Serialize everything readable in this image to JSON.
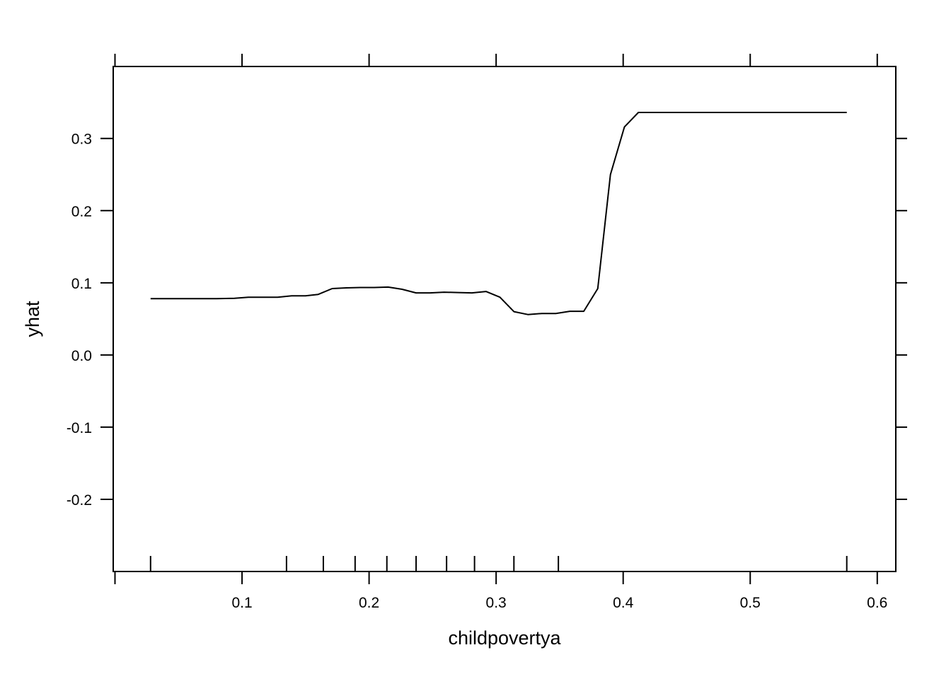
{
  "chart_data": {
    "type": "line",
    "xlabel": "childpovertya",
    "ylabel": "yhat",
    "xlim": [
      -0.0014,
      0.6146
    ],
    "ylim": [
      -0.3,
      0.3997
    ],
    "x_ticks": [
      0.1,
      0.2,
      0.3,
      0.4,
      0.5,
      0.6
    ],
    "x_tick_labels": [
      "0.1",
      "0.2",
      "0.3",
      "0.4",
      "0.5",
      "0.6"
    ],
    "y_ticks": [
      -0.2,
      -0.1,
      0.0,
      0.1,
      0.2,
      0.3
    ],
    "y_tick_labels": [
      "-0.2",
      "-0.1",
      "0.0",
      "0.1",
      "0.2",
      "0.3"
    ],
    "grid": false,
    "rug_x": [
      0.028,
      0.135,
      0.164,
      0.189,
      0.214,
      0.237,
      0.261,
      0.283,
      0.314,
      0.349,
      0.576
    ],
    "series": [
      {
        "x": [
          0.028,
          0.04,
          0.06,
          0.08,
          0.094,
          0.105,
          0.128,
          0.139,
          0.15,
          0.16,
          0.171,
          0.182,
          0.193,
          0.204,
          0.215,
          0.226,
          0.237,
          0.248,
          0.259,
          0.27,
          0.281,
          0.292,
          0.303,
          0.314,
          0.325,
          0.336,
          0.347,
          0.358,
          0.369,
          0.38,
          0.39,
          0.401,
          0.412,
          0.45,
          0.5,
          0.576
        ],
        "y": [
          0.078,
          0.078,
          0.078,
          0.078,
          0.0785,
          0.08,
          0.08,
          0.082,
          0.082,
          0.084,
          0.092,
          0.093,
          0.0935,
          0.0935,
          0.094,
          0.091,
          0.086,
          0.086,
          0.087,
          0.0865,
          0.086,
          0.088,
          0.08,
          0.06,
          0.056,
          0.0575,
          0.0575,
          0.0605,
          0.0605,
          0.092,
          0.25,
          0.316,
          0.336,
          0.336,
          0.336,
          0.336
        ]
      }
    ]
  }
}
